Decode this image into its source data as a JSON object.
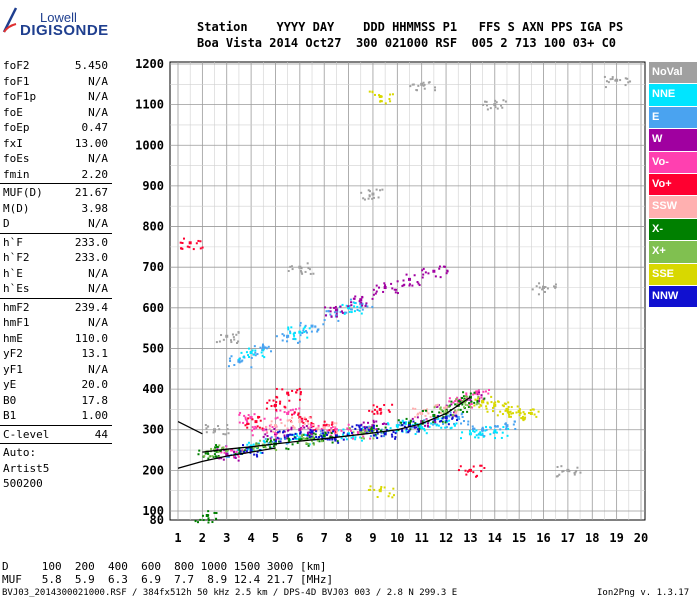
{
  "logo": {
    "line1": "Lowell",
    "line2": "DIGISONDE"
  },
  "header": {
    "line1": "Station    YYYY DAY    DDD HHMMSS P1   FFS S AXN PPS IGA PS",
    "line2": "Boa Vista 2014 Oct27  300 021000 RSF  005 2 713 100 03+ C0"
  },
  "params": [
    {
      "label": "foF2",
      "value": "5.450"
    },
    {
      "label": "foF1",
      "value": "N/A"
    },
    {
      "label": "foF1p",
      "value": "N/A"
    },
    {
      "label": "foE",
      "value": "N/A"
    },
    {
      "label": "foEp",
      "value": "0.47"
    },
    {
      "label": "fxI",
      "value": "13.00"
    },
    {
      "label": "foEs",
      "value": "N/A"
    },
    {
      "label": "fmin",
      "value": "2.20"
    },
    {
      "sep": true
    },
    {
      "label": "MUF(D)",
      "value": "21.67"
    },
    {
      "label": "M(D)",
      "value": "3.98"
    },
    {
      "label": "D",
      "value": "N/A"
    },
    {
      "sep": true
    },
    {
      "label": "h`F",
      "value": "233.0"
    },
    {
      "label": "h`F2",
      "value": "233.0"
    },
    {
      "label": "h`E",
      "value": "N/A"
    },
    {
      "label": "h`Es",
      "value": "N/A"
    },
    {
      "sep": true
    },
    {
      "label": "hmF2",
      "value": "239.4"
    },
    {
      "label": "hmF1",
      "value": "N/A"
    },
    {
      "label": "hmE",
      "value": "110.0"
    },
    {
      "label": "yF2",
      "value": "13.1"
    },
    {
      "label": "yF1",
      "value": "N/A"
    },
    {
      "label": "yE",
      "value": "20.0"
    },
    {
      "label": "B0",
      "value": "17.8"
    },
    {
      "label": "B1",
      "value": "1.00"
    },
    {
      "sep": true
    },
    {
      "label": "C-level",
      "value": "44"
    },
    {
      "sep": true
    },
    {
      "label": "Auto:",
      "value": ""
    },
    {
      "label": "Artist5",
      "value": ""
    },
    {
      "label": "500200",
      "value": ""
    }
  ],
  "legend": [
    {
      "label": "NoVal",
      "color": "#a0a0a0"
    },
    {
      "label": "NNE",
      "color": "#00e5ff"
    },
    {
      "label": "E",
      "color": "#4aa3f0"
    },
    {
      "label": "W",
      "color": "#a000a0"
    },
    {
      "label": "Vo-",
      "color": "#ff40b0"
    },
    {
      "label": "Vo+",
      "color": "#ff0030"
    },
    {
      "label": "SSW",
      "color": "#ffb0b0"
    },
    {
      "label": "X-",
      "color": "#008000"
    },
    {
      "label": "X+",
      "color": "#80c050"
    },
    {
      "label": "SSE",
      "color": "#d8d800"
    },
    {
      "label": "NNW",
      "color": "#1010d0"
    }
  ],
  "bottom": {
    "line1": "D     100  200  400  600  800 1000 1500 3000 [km]",
    "line2": "MUF   5.8  5.9  6.3  6.9  7.7  8.9 12.4 21.7 [MHz]"
  },
  "footer": {
    "left": "BVJ03_2014300021000.RSF / 384fx512h 50 kHz 2.5 km / DPS-4D BVJ03 003 / 2.8 N 299.3 E",
    "right": "Ion2Png v. 1.3.17"
  },
  "chart_data": {
    "type": "scatter",
    "xlim": [
      1,
      20
    ],
    "ylim": [
      80,
      1200
    ],
    "x_ticks": [
      1,
      2,
      3,
      4,
      5,
      6,
      7,
      8,
      9,
      10,
      11,
      12,
      13,
      14,
      15,
      16,
      17,
      18,
      19,
      20
    ],
    "y_ticks": [
      80,
      100,
      200,
      300,
      400,
      500,
      600,
      700,
      800,
      900,
      1000,
      1100,
      1200
    ],
    "grid": true,
    "legend_position": "right",
    "series": [
      {
        "name": "E",
        "color": "#4aa3f0",
        "points": [
          [
            3.5,
            470
          ],
          [
            4.5,
            500
          ],
          [
            5.5,
            530
          ],
          [
            6.5,
            555
          ],
          [
            7.5,
            580
          ],
          [
            8.5,
            610
          ],
          [
            3.0,
            250
          ],
          [
            5.0,
            270
          ],
          [
            7.0,
            285
          ],
          [
            9.0,
            300
          ],
          [
            10.5,
            310
          ],
          [
            11.5,
            320
          ],
          [
            12.5,
            330
          ],
          [
            13.5,
            300
          ],
          [
            14.5,
            310
          ]
        ]
      },
      {
        "name": "NNE",
        "color": "#00e5ff",
        "points": [
          [
            4.0,
            490
          ],
          [
            6.0,
            540
          ],
          [
            8.0,
            600
          ],
          [
            4.0,
            260
          ],
          [
            6.0,
            280
          ],
          [
            8.0,
            290
          ],
          [
            10.0,
            310
          ],
          [
            11.0,
            305
          ],
          [
            12.0,
            320
          ],
          [
            13.0,
            290
          ],
          [
            14.0,
            295
          ]
        ]
      },
      {
        "name": "W",
        "color": "#a000a0",
        "points": [
          [
            7.5,
            595
          ],
          [
            8.5,
            620
          ],
          [
            9.5,
            650
          ],
          [
            10.5,
            670
          ],
          [
            11.5,
            690
          ],
          [
            3.0,
            240
          ],
          [
            5.0,
            290
          ],
          [
            6.0,
            300
          ],
          [
            9.0,
            310
          ],
          [
            11.0,
            320
          ],
          [
            12.0,
            350
          ],
          [
            13.0,
            380
          ]
        ]
      },
      {
        "name": "Vo-",
        "color": "#ff40b0",
        "points": [
          [
            3.2,
            250
          ],
          [
            4.0,
            330
          ],
          [
            4.5,
            300
          ],
          [
            5.5,
            340
          ],
          [
            6.5,
            310
          ],
          [
            7.5,
            300
          ],
          [
            8.5,
            295
          ],
          [
            12.5,
            370
          ],
          [
            13.2,
            390
          ]
        ]
      },
      {
        "name": "Vo+",
        "color": "#ff0030",
        "points": [
          [
            4.2,
            320
          ],
          [
            5.0,
            360
          ],
          [
            5.5,
            390
          ],
          [
            6.0,
            330
          ],
          [
            7.0,
            310
          ],
          [
            9.3,
            350
          ],
          [
            13.0,
            200
          ],
          [
            1.5,
            760
          ]
        ]
      },
      {
        "name": "SSW",
        "color": "#ffb0b0",
        "points": [
          [
            5.0,
            310
          ],
          [
            6.0,
            320
          ],
          [
            7.0,
            305
          ],
          [
            11.0,
            340
          ],
          [
            12.0,
            350
          ]
        ]
      },
      {
        "name": "X-",
        "color": "#008000",
        "points": [
          [
            2.2,
            245
          ],
          [
            3.0,
            250
          ],
          [
            4.0,
            255
          ],
          [
            5.0,
            265
          ],
          [
            6.0,
            275
          ],
          [
            7.0,
            285
          ],
          [
            9.0,
            300
          ],
          [
            10.5,
            315
          ],
          [
            11.5,
            335
          ],
          [
            12.5,
            360
          ],
          [
            13.0,
            380
          ],
          [
            2.2,
            90
          ]
        ]
      },
      {
        "name": "X+",
        "color": "#80c050",
        "points": [
          [
            2.5,
            250
          ],
          [
            4.5,
            262
          ],
          [
            6.5,
            280
          ],
          [
            8.5,
            295
          ],
          [
            12.0,
            345
          ],
          [
            12.8,
            372
          ]
        ]
      },
      {
        "name": "SSE",
        "color": "#d8d800",
        "points": [
          [
            13.5,
            370
          ],
          [
            14.0,
            360
          ],
          [
            14.5,
            350
          ],
          [
            15.0,
            345
          ],
          [
            15.5,
            340
          ],
          [
            9.3,
            1120
          ],
          [
            9.3,
            150
          ]
        ]
      },
      {
        "name": "NNW",
        "color": "#1010d0",
        "points": [
          [
            4.0,
            250
          ],
          [
            5.5,
            285
          ],
          [
            6.5,
            295
          ],
          [
            7.5,
            285
          ],
          [
            8.5,
            300
          ],
          [
            9.5,
            290
          ],
          [
            10.5,
            310
          ],
          [
            12.0,
            330
          ]
        ]
      },
      {
        "name": "NoVal",
        "color": "#a0a0a0",
        "points": [
          [
            3.0,
            530
          ],
          [
            6.0,
            700
          ],
          [
            9.0,
            880
          ],
          [
            11.0,
            1150
          ],
          [
            14.0,
            1100
          ],
          [
            16.0,
            650
          ],
          [
            17.0,
            200
          ],
          [
            19.0,
            1160
          ],
          [
            2.5,
            300
          ]
        ]
      }
    ],
    "curves": [
      {
        "color": "#000000",
        "points": [
          [
            1,
            205
          ],
          [
            2,
            222
          ],
          [
            3,
            235
          ],
          [
            4,
            245
          ],
          [
            5,
            255
          ]
        ]
      },
      {
        "color": "#000000",
        "points": [
          [
            2,
            245
          ],
          [
            3,
            252
          ],
          [
            4,
            258
          ],
          [
            5,
            265
          ],
          [
            6,
            272
          ],
          [
            7,
            278
          ],
          [
            8,
            285
          ],
          [
            9,
            292
          ],
          [
            10,
            300
          ],
          [
            11,
            315
          ],
          [
            12,
            340
          ],
          [
            13,
            380
          ]
        ]
      },
      {
        "color": "#000000",
        "points": [
          [
            1,
            320
          ],
          [
            1.5,
            305
          ],
          [
            2,
            290
          ]
        ]
      }
    ]
  }
}
